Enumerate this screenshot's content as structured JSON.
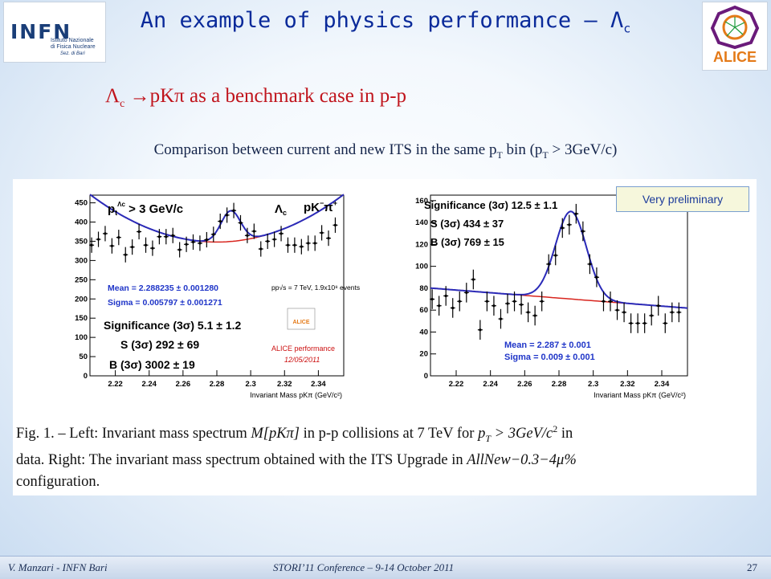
{
  "title": {
    "main": "An example of physics performance – Λ",
    "subscript": "c"
  },
  "logos": {
    "infn": {
      "word": "INFN",
      "line1": "Istituto Nazionale",
      "line2": "di Fisica Nucleare",
      "line3": "Sez. di Bari"
    },
    "alice": {
      "word": "ALICE"
    }
  },
  "subtitle": {
    "lambda": "Λ",
    "sub": "c",
    "arrow": "→",
    "text": "pKπ as a benchmark case in p-p"
  },
  "comparison": {
    "pre": "Comparison between current and new ITS in  the same p",
    "sub1": "T",
    "mid": " bin (p",
    "sub2": "T",
    "post": " > 3GeV/c)"
  },
  "prelim_badge": "Very preliminary",
  "caption": {
    "line1": "Fig. 1. – Left:  Invariant mass spectrum ",
    "math1": "M[pKπ]",
    "line1b": " in p-p collisions at 7 TeV for ",
    "math2": "p",
    "math2sub": "T",
    "math2b": " > 3GeV/c",
    "math2sup": "2",
    "line1c": " in",
    "line2": "data.  Right:  The invariant mass spectrum obtained with the ITS Upgrade in ",
    "math3": "AllNew−0.3−4μ%",
    "line3": "configuration."
  },
  "footer": {
    "left": "V. Manzari - INFN Bari",
    "center": "STORI’11 Conference – 9-14 October 2011",
    "page": "27"
  },
  "colors": {
    "fit": "#2a2ab8",
    "background_fit": "#d8251e",
    "data": "#000000",
    "annotation": "#1f35c8",
    "alice_perf": "#cc1111"
  },
  "chart_data": [
    {
      "type": "scatter",
      "name_text": {
        "ptcut": "p",
        "ptcut_sub": "t",
        "ptcut_sup": "Λc",
        "ptcut_rest": " > 3 GeV/c",
        "lambda": "Λ",
        "lambda_sub": "c",
        "channel": "pK",
        "channel_sup": "−",
        "channel2": "π",
        "channel2_sup": "+",
        "events": "pp√s = 7 TeV, 1.9x10⁸ events",
        "mean": "Mean = 2.288235 ± 0.001280",
        "sigma": "Sigma = 0.005797 ± 0.001271",
        "significance": "Significance (3σ) 5.1 ± 1.2",
        "signal": "S (3σ) 292 ± 69",
        "background": "B (3σ) 3002 ± 19",
        "alice_perf": "ALICE performance",
        "date": "12/05/2011",
        "alice_logo": "ALICE",
        "xlabel": "Invariant Mass pKπ (GeV/c²)"
      },
      "xlim": [
        2.205,
        2.355
      ],
      "ylim": [
        0,
        470
      ],
      "xticks": [
        "2.22",
        "2.24",
        "2.26",
        "2.28",
        "2.3",
        "2.32",
        "2.34"
      ],
      "yticks": [
        "0",
        "50",
        "100",
        "150",
        "200",
        "250",
        "300",
        "350",
        "400",
        "450"
      ],
      "points": [
        [
          2.206,
          340
        ],
        [
          2.21,
          355
        ],
        [
          2.214,
          370
        ],
        [
          2.218,
          338
        ],
        [
          2.222,
          360
        ],
        [
          2.226,
          315
        ],
        [
          2.23,
          335
        ],
        [
          2.234,
          375
        ],
        [
          2.238,
          340
        ],
        [
          2.242,
          332
        ],
        [
          2.246,
          362
        ],
        [
          2.25,
          362
        ],
        [
          2.254,
          365
        ],
        [
          2.258,
          328
        ],
        [
          2.262,
          342
        ],
        [
          2.266,
          348
        ],
        [
          2.27,
          345
        ],
        [
          2.274,
          354
        ],
        [
          2.278,
          368
        ],
        [
          2.282,
          402
        ],
        [
          2.286,
          418
        ],
        [
          2.29,
          430
        ],
        [
          2.294,
          398
        ],
        [
          2.298,
          365
        ],
        [
          2.302,
          376
        ],
        [
          2.306,
          330
        ],
        [
          2.31,
          350
        ],
        [
          2.314,
          355
        ],
        [
          2.318,
          370
        ],
        [
          2.322,
          340
        ],
        [
          2.326,
          340
        ],
        [
          2.33,
          336
        ],
        [
          2.334,
          345
        ],
        [
          2.338,
          345
        ],
        [
          2.342,
          372
        ],
        [
          2.346,
          358
        ],
        [
          2.35,
          392
        ]
      ],
      "errors": 20,
      "background_fit": {
        "a": 348,
        "b": 0,
        "c": 22000
      },
      "signal_fit": {
        "mean": 2.288235,
        "sigma": 0.005797,
        "amplitude": 80
      }
    },
    {
      "type": "scatter",
      "name_text": {
        "significance": "Significance (3σ) 12.5 ± 1.1",
        "signal": "S (3σ) 434 ± 37",
        "background": "B (3σ) 769 ± 15",
        "mean": "Mean = 2.287 ± 0.001",
        "sigma": "Sigma = 0.009 ± 0.001",
        "xlabel": "Invariant Mass pKπ (GeV/c²)"
      },
      "xlim": [
        2.205,
        2.355
      ],
      "ylim": [
        0,
        165
      ],
      "xticks": [
        "2.22",
        "2.24",
        "2.26",
        "2.28",
        "2.3",
        "2.32",
        "2.34"
      ],
      "yticks": [
        "0",
        "20",
        "40",
        "60",
        "80",
        "100",
        "120",
        "140",
        "160"
      ],
      "points": [
        [
          2.206,
          70
        ],
        [
          2.21,
          64
        ],
        [
          2.214,
          73
        ],
        [
          2.218,
          62
        ],
        [
          2.222,
          68
        ],
        [
          2.226,
          76
        ],
        [
          2.23,
          88
        ],
        [
          2.234,
          42
        ],
        [
          2.238,
          68
        ],
        [
          2.242,
          64
        ],
        [
          2.246,
          52
        ],
        [
          2.25,
          66
        ],
        [
          2.254,
          68
        ],
        [
          2.258,
          65
        ],
        [
          2.262,
          58
        ],
        [
          2.266,
          55
        ],
        [
          2.27,
          68
        ],
        [
          2.274,
          102
        ],
        [
          2.278,
          110
        ],
        [
          2.282,
          135
        ],
        [
          2.286,
          138
        ],
        [
          2.29,
          148
        ],
        [
          2.294,
          132
        ],
        [
          2.298,
          102
        ],
        [
          2.302,
          90
        ],
        [
          2.306,
          68
        ],
        [
          2.31,
          68
        ],
        [
          2.314,
          60
        ],
        [
          2.318,
          58
        ],
        [
          2.322,
          48
        ],
        [
          2.326,
          48
        ],
        [
          2.33,
          48
        ],
        [
          2.334,
          55
        ],
        [
          2.338,
          64
        ],
        [
          2.342,
          48
        ],
        [
          2.346,
          58
        ],
        [
          2.35,
          58
        ]
      ],
      "errors": 9,
      "background_fit": {
        "a": 71,
        "b": -122,
        "c": 0
      },
      "signal_fit": {
        "mean": 2.287,
        "sigma": 0.009,
        "amplitude": 80
      }
    }
  ]
}
